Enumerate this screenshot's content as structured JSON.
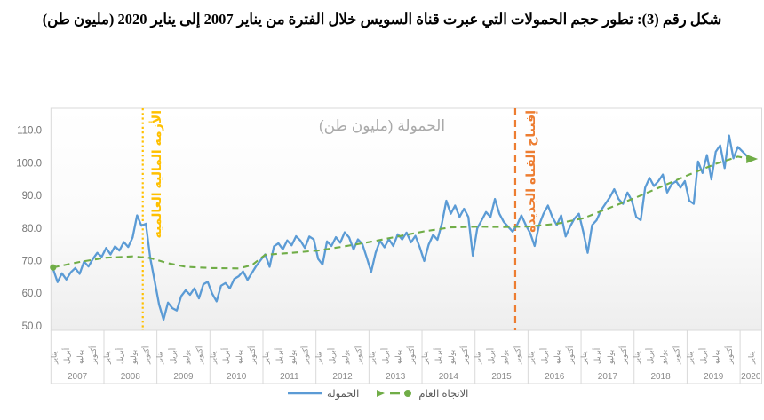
{
  "page_title": "شكل رقم (3): تطور حجم الحمولات التي عبرت قناة السويس خلال الفترة من يناير 2007 إلى يناير 2020 (مليون طن)",
  "chart_data": {
    "type": "line",
    "title": "الحمولة (مليون طن)",
    "x_start": "2007-01",
    "x_end": "2020-01",
    "ylim": [
      50,
      110
    ],
    "y_ticks": [
      50,
      60,
      70,
      80,
      90,
      100,
      110
    ],
    "grid": "off",
    "legend_position": "bottom-center",
    "month_tick_labels": [
      "يناير",
      "أبريل",
      "يوليو",
      "أكتوبر"
    ],
    "years": [
      2007,
      2008,
      2009,
      2010,
      2011,
      2012,
      2013,
      2014,
      2015,
      2016,
      2017,
      2018,
      2019,
      2020
    ],
    "series": [
      {
        "name": "الحمولة",
        "color": "#5B9BD5",
        "style": "solid",
        "values": [
          67.4,
          63.4,
          66.1,
          64.2,
          66.4,
          67.7,
          65.9,
          69.7,
          68.2,
          70.5,
          72.4,
          71.2,
          73.9,
          71.9,
          74.4,
          73.1,
          75.7,
          74.2,
          77.1,
          83.9,
          80.7,
          81.3,
          70.7,
          63.6,
          56.5,
          51.9,
          57.1,
          55.4,
          54.7,
          59.1,
          60.9,
          59.5,
          61.5,
          58.4,
          62.7,
          63.5,
          59.9,
          57.5,
          62.3,
          63.1,
          61.5,
          64.4,
          65.2,
          66.7,
          64.1,
          66.2,
          68.4,
          70.2,
          71.9,
          68.1,
          74.4,
          75.3,
          73.5,
          76.2,
          74.7,
          77.5,
          76.1,
          73.9,
          77.4,
          76.5,
          70.5,
          68.8,
          75.9,
          74.5,
          77.2,
          75.5,
          78.7,
          77.1,
          73.4,
          76.5,
          75.1,
          70.9,
          66.5,
          72.4,
          76.1,
          74.1,
          76.6,
          74.5,
          78.1,
          76.5,
          78.6,
          75.6,
          77.6,
          74.1,
          69.9,
          74.9,
          77.9,
          76.4,
          81.4,
          88.4,
          84.4,
          86.9,
          83.4,
          85.9,
          83.4,
          71.5,
          79.9,
          82.4,
          84.9,
          83.4,
          88.9,
          84.4,
          81.9,
          80.4,
          78.9,
          80.9,
          83.9,
          80.9,
          78.4,
          74.5,
          80.9,
          84.4,
          86.9,
          83.4,
          80.9,
          83.9,
          77.4,
          80.4,
          82.9,
          84.4,
          78.9,
          72.4,
          80.9,
          82.4,
          85.4,
          87.4,
          89.4,
          91.9,
          88.9,
          87.4,
          90.9,
          88.4,
          83.4,
          82.4,
          92.4,
          95.4,
          92.9,
          94.4,
          96.4,
          90.9,
          93.4,
          94.4,
          92.4,
          94.4,
          88.4,
          87.4,
          100.4,
          96.9,
          102.4,
          94.9,
          103.4,
          105.4,
          98.4,
          108.4,
          101.4,
          104.9,
          100.9
        ]
      },
      {
        "name": "الاتجاه العام",
        "color": "#70AD47",
        "style": "dashed",
        "start_marker": "dot",
        "end_marker": "arrow",
        "points": [
          [
            0,
            67.9
          ],
          [
            6,
            69.6
          ],
          [
            12,
            70.9
          ],
          [
            18,
            71.3
          ],
          [
            22,
            70.8
          ],
          [
            26,
            69.2
          ],
          [
            30,
            68.1
          ],
          [
            36,
            67.7
          ],
          [
            42,
            67.6
          ],
          [
            45,
            68.6
          ],
          [
            48,
            71.8
          ],
          [
            54,
            72.4
          ],
          [
            60,
            73.1
          ],
          [
            66,
            74.4
          ],
          [
            72,
            75.8
          ],
          [
            78,
            77.4
          ],
          [
            84,
            79.0
          ],
          [
            90,
            80.2
          ],
          [
            96,
            80.4
          ],
          [
            102,
            80.3
          ],
          [
            108,
            80.5
          ],
          [
            114,
            81.3
          ],
          [
            120,
            83.0
          ],
          [
            126,
            86.2
          ],
          [
            132,
            89.4
          ],
          [
            138,
            92.9
          ],
          [
            144,
            96.4
          ],
          [
            150,
            99.7
          ],
          [
            153,
            101.0
          ],
          [
            155,
            101.9
          ],
          [
            156,
            101.2
          ]
        ]
      }
    ],
    "annotations": [
      {
        "label": "الأزمة المالية العالمية",
        "month_index": 20.3,
        "color": "#FFC000",
        "line_style": "dotted"
      },
      {
        "label": "إفتتاح القناة الجديدة",
        "month_index": 104.6,
        "color": "#ED7D31",
        "line_style": "dashed"
      }
    ],
    "colors": {
      "axis_text": "#8a8a8a",
      "y_axis_text": "#757575",
      "border": "#D9D9D9",
      "chart_title": "#a9a9a9",
      "legend_text": "#595959"
    }
  }
}
